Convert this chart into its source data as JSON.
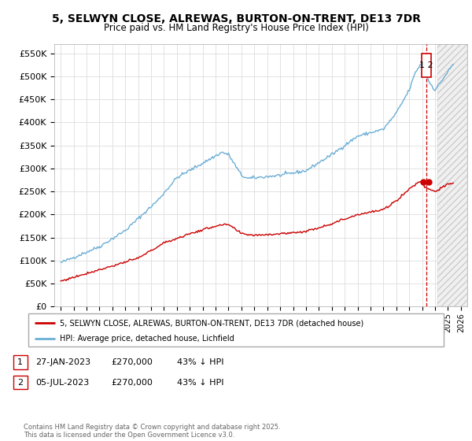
{
  "title_line1": "5, SELWYN CLOSE, ALREWAS, BURTON-ON-TRENT, DE13 7DR",
  "title_line2": "Price paid vs. HM Land Registry's House Price Index (HPI)",
  "ylim": [
    0,
    570000
  ],
  "xlim": [
    1994.5,
    2026.5
  ],
  "yticks": [
    0,
    50000,
    100000,
    150000,
    200000,
    250000,
    300000,
    350000,
    400000,
    450000,
    500000,
    550000
  ],
  "ytick_labels": [
    "£0",
    "£50K",
    "£100K",
    "£150K",
    "£200K",
    "£250K",
    "£300K",
    "£350K",
    "£400K",
    "£450K",
    "£500K",
    "£550K"
  ],
  "xticks": [
    1995,
    1996,
    1997,
    1998,
    1999,
    2000,
    2001,
    2002,
    2003,
    2004,
    2005,
    2006,
    2007,
    2008,
    2009,
    2010,
    2011,
    2012,
    2013,
    2014,
    2015,
    2016,
    2017,
    2018,
    2019,
    2020,
    2021,
    2022,
    2023,
    2024,
    2025,
    2026
  ],
  "hpi_color": "#6baed6",
  "price_color": "#cc0000",
  "marker_color": "#cc0000",
  "dashed_line_color": "#cc0000",
  "transaction1_x": 2023.07,
  "transaction1_y": 270000,
  "transaction2_x": 2023.54,
  "transaction2_y": 270000,
  "legend_label_price": "5, SELWYN CLOSE, ALREWAS, BURTON-ON-TRENT, DE13 7DR (detached house)",
  "legend_label_hpi": "HPI: Average price, detached house, Lichfield",
  "table_rows": [
    {
      "num": "1",
      "date": "27-JAN-2023",
      "price": "£270,000",
      "hpi": "43% ↓ HPI"
    },
    {
      "num": "2",
      "date": "05-JUL-2023",
      "price": "£270,000",
      "hpi": "43% ↓ HPI"
    }
  ],
  "copyright": "Contains HM Land Registry data © Crown copyright and database right 2025.\nThis data is licensed under the Open Government Licence v3.0.",
  "background_color": "#ffffff",
  "grid_color": "#dddddd",
  "hatch_start": 2024.2
}
